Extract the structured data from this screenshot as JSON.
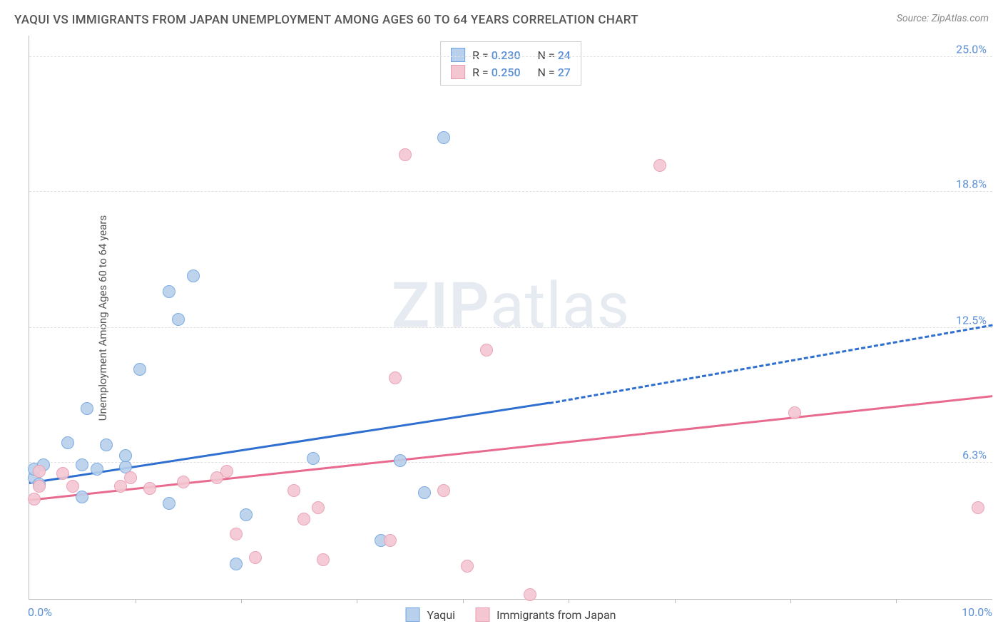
{
  "title": "YAQUI VS IMMIGRANTS FROM JAPAN UNEMPLOYMENT AMONG AGES 60 TO 64 YEARS CORRELATION CHART",
  "source": "Source: ZipAtlas.com",
  "ylabel": "Unemployment Among Ages 60 to 64 years",
  "watermark_zip": "ZIP",
  "watermark_atlas": "atlas",
  "chart": {
    "type": "scatter",
    "xlim": [
      0,
      10
    ],
    "ylim": [
      0,
      26
    ],
    "x_ticks": [
      1.1,
      2.2,
      3.4,
      4.5,
      5.6,
      6.7,
      7.9,
      9.0
    ],
    "x_tick_labels": {
      "left": "0.0%",
      "right": "10.0%"
    },
    "y_gridlines": [
      6.3,
      12.5,
      18.8,
      25.0
    ],
    "y_tick_labels": [
      "6.3%",
      "12.5%",
      "18.8%",
      "25.0%"
    ],
    "grid_color": "#e0e0e0",
    "axis_color": "#bbbbbb",
    "background_color": "#ffffff",
    "marker_radius": 9,
    "marker_border_width": 1.5,
    "marker_fill_opacity": 0.25,
    "series": [
      {
        "name": "Yaqui",
        "stroke": "#6fa3e0",
        "fill": "#b8d0ec",
        "trend_color": "#2f6fd0",
        "trend_width": 3,
        "r": "0.230",
        "n": "24",
        "trend": {
          "x0": 0.0,
          "y0": 5.3,
          "x1": 5.4,
          "y1": 9.0,
          "x2": 10.0,
          "y2": 12.6
        },
        "points": [
          [
            0.05,
            5.6
          ],
          [
            0.05,
            6.0
          ],
          [
            0.1,
            5.3
          ],
          [
            0.15,
            6.2
          ],
          [
            0.4,
            7.2
          ],
          [
            0.55,
            4.7
          ],
          [
            0.55,
            6.2
          ],
          [
            0.6,
            8.8
          ],
          [
            0.7,
            6.0
          ],
          [
            0.8,
            7.1
          ],
          [
            1.0,
            6.1
          ],
          [
            1.0,
            6.6
          ],
          [
            1.15,
            10.6
          ],
          [
            1.45,
            4.4
          ],
          [
            1.45,
            14.2
          ],
          [
            1.55,
            12.9
          ],
          [
            1.7,
            14.9
          ],
          [
            2.15,
            1.6
          ],
          [
            2.25,
            3.9
          ],
          [
            2.95,
            6.5
          ],
          [
            3.65,
            2.7
          ],
          [
            3.85,
            6.4
          ],
          [
            4.1,
            4.9
          ],
          [
            4.3,
            21.3
          ]
        ]
      },
      {
        "name": "Immigrants from Japan",
        "stroke": "#e89cb0",
        "fill": "#f3c6d2",
        "trend_color": "#e86a8e",
        "trend_width": 3,
        "r": "0.250",
        "n": "27",
        "trend": {
          "x0": 0.0,
          "y0": 4.5,
          "x1": 10.0,
          "y1": 9.3,
          "x2": 10.0,
          "y2": 9.3
        },
        "points": [
          [
            0.05,
            4.6
          ],
          [
            0.1,
            5.9
          ],
          [
            0.1,
            5.2
          ],
          [
            0.35,
            5.8
          ],
          [
            0.45,
            5.2
          ],
          [
            0.95,
            5.2
          ],
          [
            1.05,
            5.6
          ],
          [
            1.25,
            5.1
          ],
          [
            1.6,
            5.4
          ],
          [
            2.05,
            5.9
          ],
          [
            2.15,
            3.0
          ],
          [
            2.35,
            1.9
          ],
          [
            2.85,
            3.7
          ],
          [
            3.05,
            1.8
          ],
          [
            3.0,
            4.2
          ],
          [
            3.75,
            2.7
          ],
          [
            3.9,
            20.5
          ],
          [
            3.8,
            10.2
          ],
          [
            4.3,
            5.0
          ],
          [
            4.55,
            1.5
          ],
          [
            4.75,
            11.5
          ],
          [
            5.2,
            0.2
          ],
          [
            6.55,
            20.0
          ],
          [
            7.95,
            8.6
          ],
          [
            9.85,
            4.2
          ],
          [
            1.95,
            5.6
          ],
          [
            2.75,
            5.0
          ]
        ]
      }
    ]
  },
  "legend_top": {
    "r_label": "R =",
    "n_label": "N ="
  },
  "legend_bottom": {
    "series1": "Yaqui",
    "series2": "Immigrants from Japan"
  }
}
